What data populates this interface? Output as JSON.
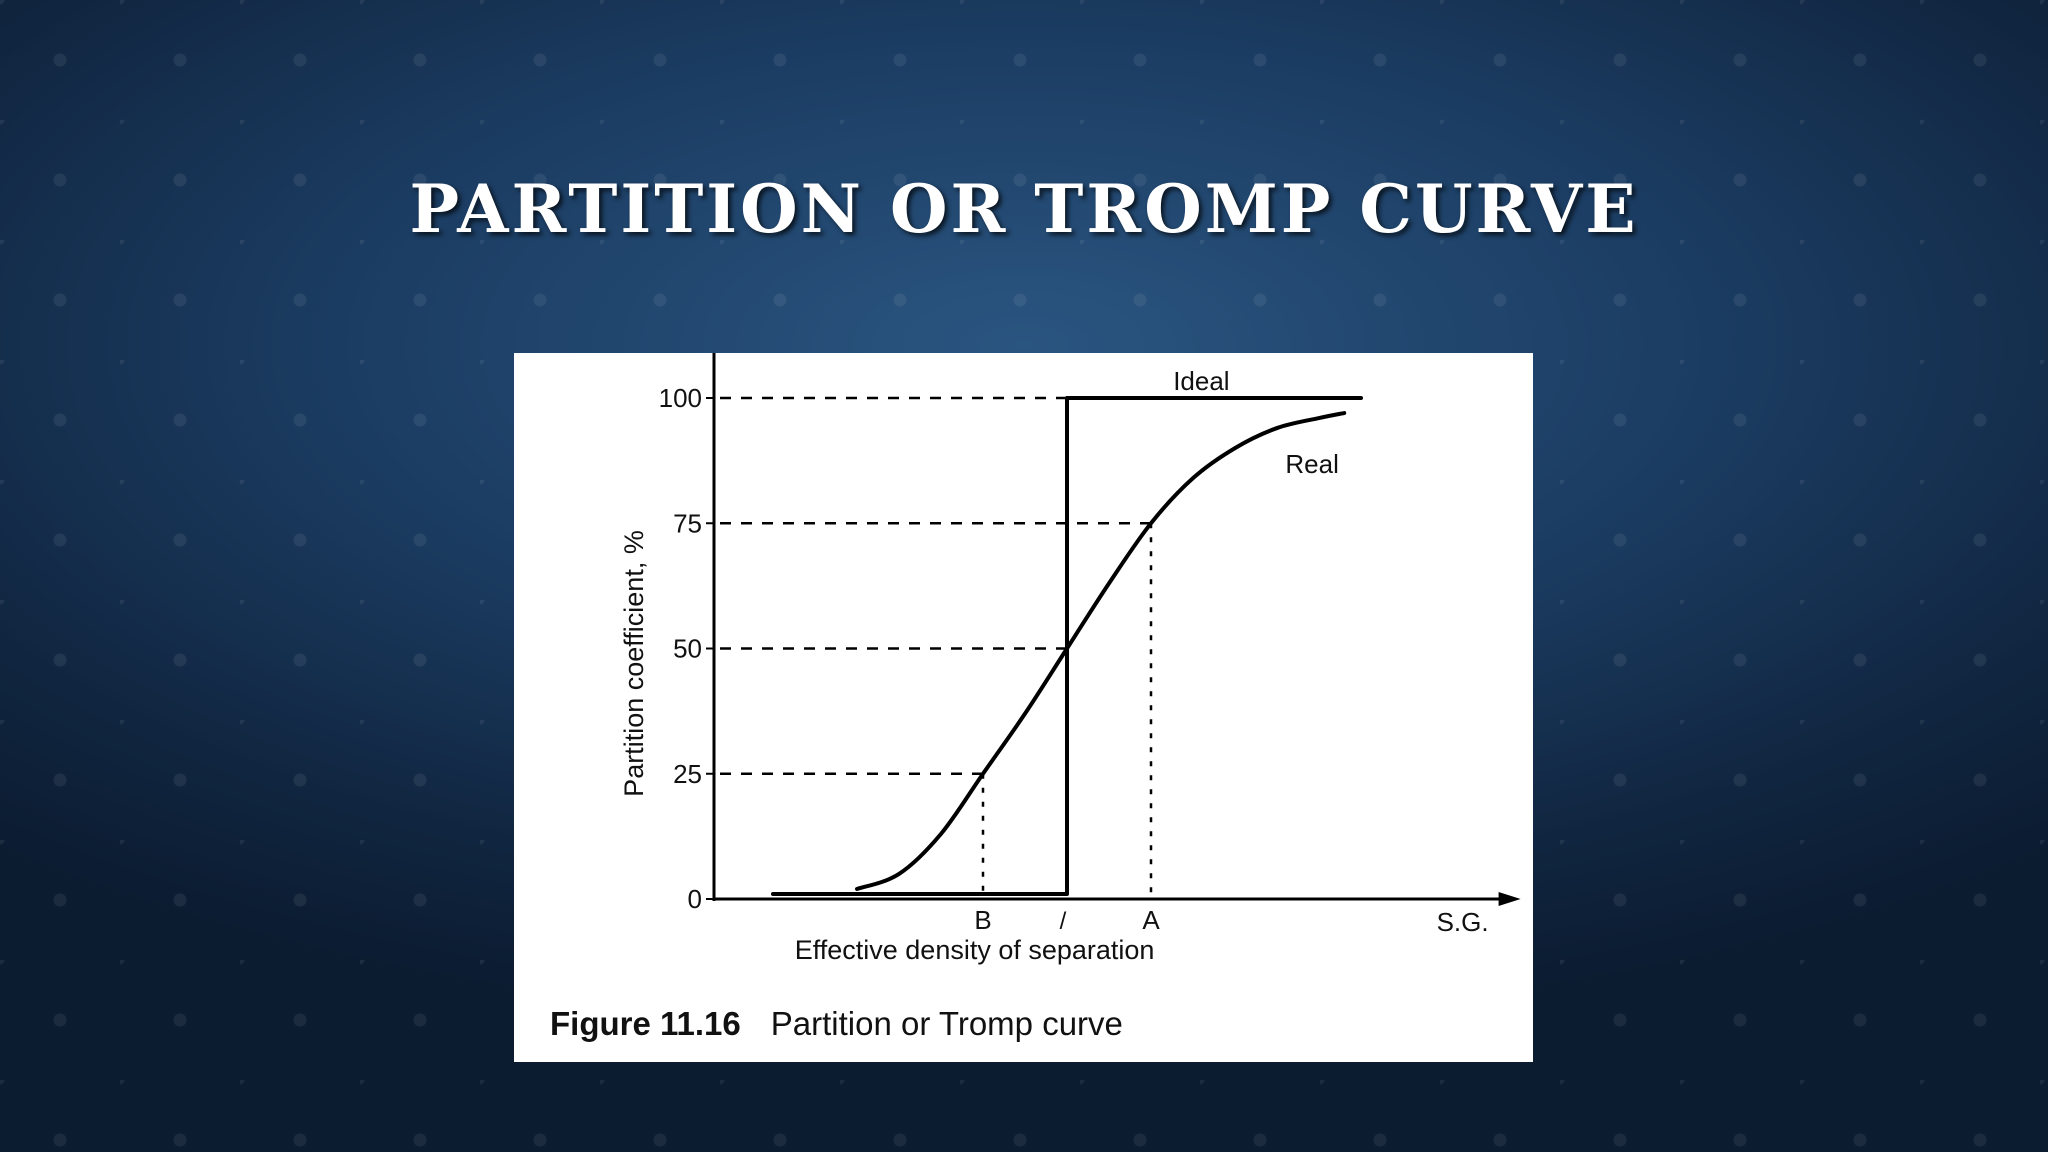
{
  "slide": {
    "title": "PARTITION OR TROMP CURVE"
  },
  "figure": {
    "number": "Figure 11.16",
    "caption": "Partition or Tromp curve"
  },
  "chart_data": {
    "type": "line",
    "ylabel": "Partition coefficient, %",
    "xlabel": "Effective density of separation",
    "x_axis_end_label": "S.G.",
    "ylim": [
      0,
      100
    ],
    "yticks": [
      "0",
      "25",
      "50",
      "75",
      "100"
    ],
    "x_markers": [
      {
        "label": "B",
        "x": -1,
        "y": 25
      },
      {
        "label": "/",
        "x": 0,
        "y": 50
      },
      {
        "label": "A",
        "x": 1,
        "y": 75
      }
    ],
    "xlim": [
      -3.5,
      5.4
    ],
    "series": [
      {
        "name": "Ideal",
        "points": [
          [
            -3.5,
            1
          ],
          [
            0,
            1
          ],
          [
            0,
            100
          ],
          [
            3.5,
            100
          ]
        ]
      },
      {
        "name": "Real",
        "points": [
          [
            -2.5,
            2
          ],
          [
            -2,
            5
          ],
          [
            -1.5,
            13
          ],
          [
            -1,
            25
          ],
          [
            -0.5,
            37
          ],
          [
            0,
            50
          ],
          [
            0.5,
            63
          ],
          [
            1,
            75
          ],
          [
            1.5,
            84
          ],
          [
            2,
            90
          ],
          [
            2.5,
            94
          ],
          [
            3,
            96
          ],
          [
            3.3,
            97
          ]
        ]
      }
    ],
    "colors": {
      "line": "#000000",
      "background": "#ffffff"
    }
  }
}
